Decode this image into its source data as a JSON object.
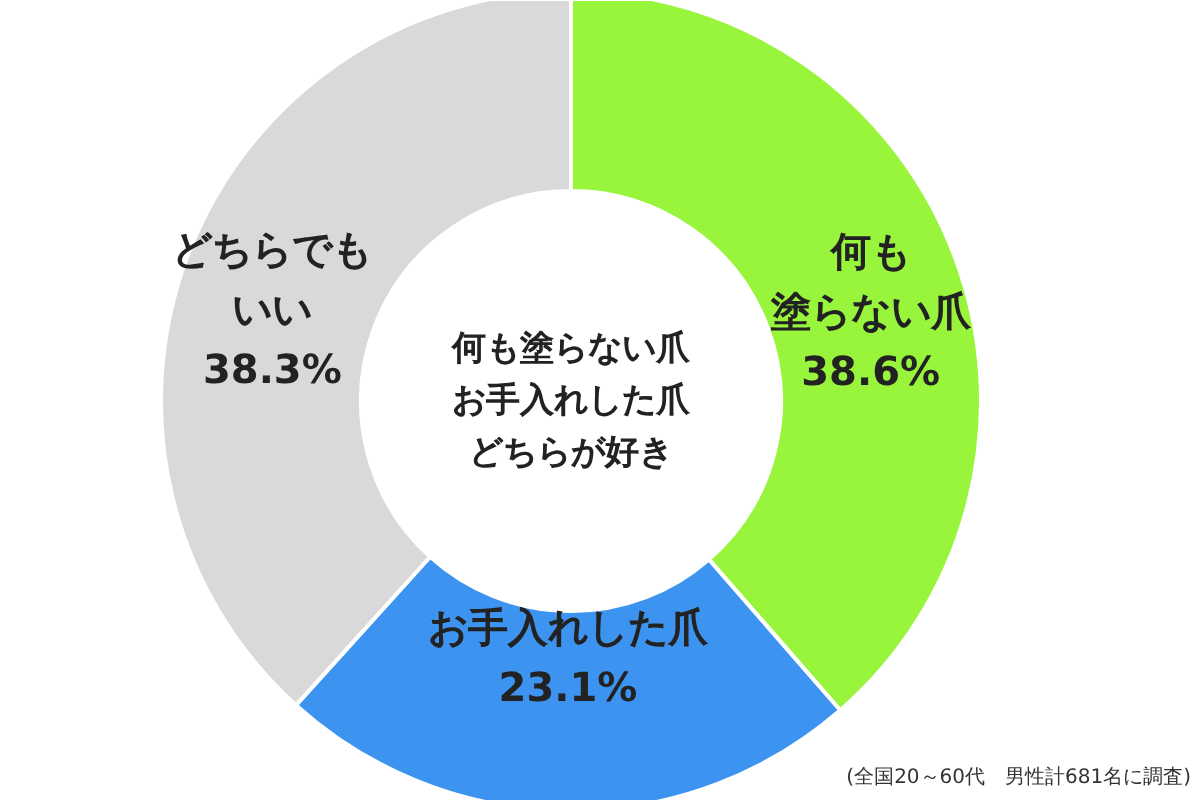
{
  "chart_data": {
    "type": "donut",
    "title": "何も塗らない爪お手入れした爪どちらが好き",
    "categories": [
      "何も塗らない爪",
      "お手入れした爪",
      "どちらでもいい"
    ],
    "values": [
      38.6,
      23.1,
      38.3
    ],
    "colors": [
      "#99f53c",
      "#3d94f0",
      "#d9d9d9"
    ],
    "value_labels": [
      "38.6%",
      "23.1%",
      "38.3%"
    ],
    "annotations": [
      "(全国20～60代　男性計681名に調査)"
    ]
  }
}
